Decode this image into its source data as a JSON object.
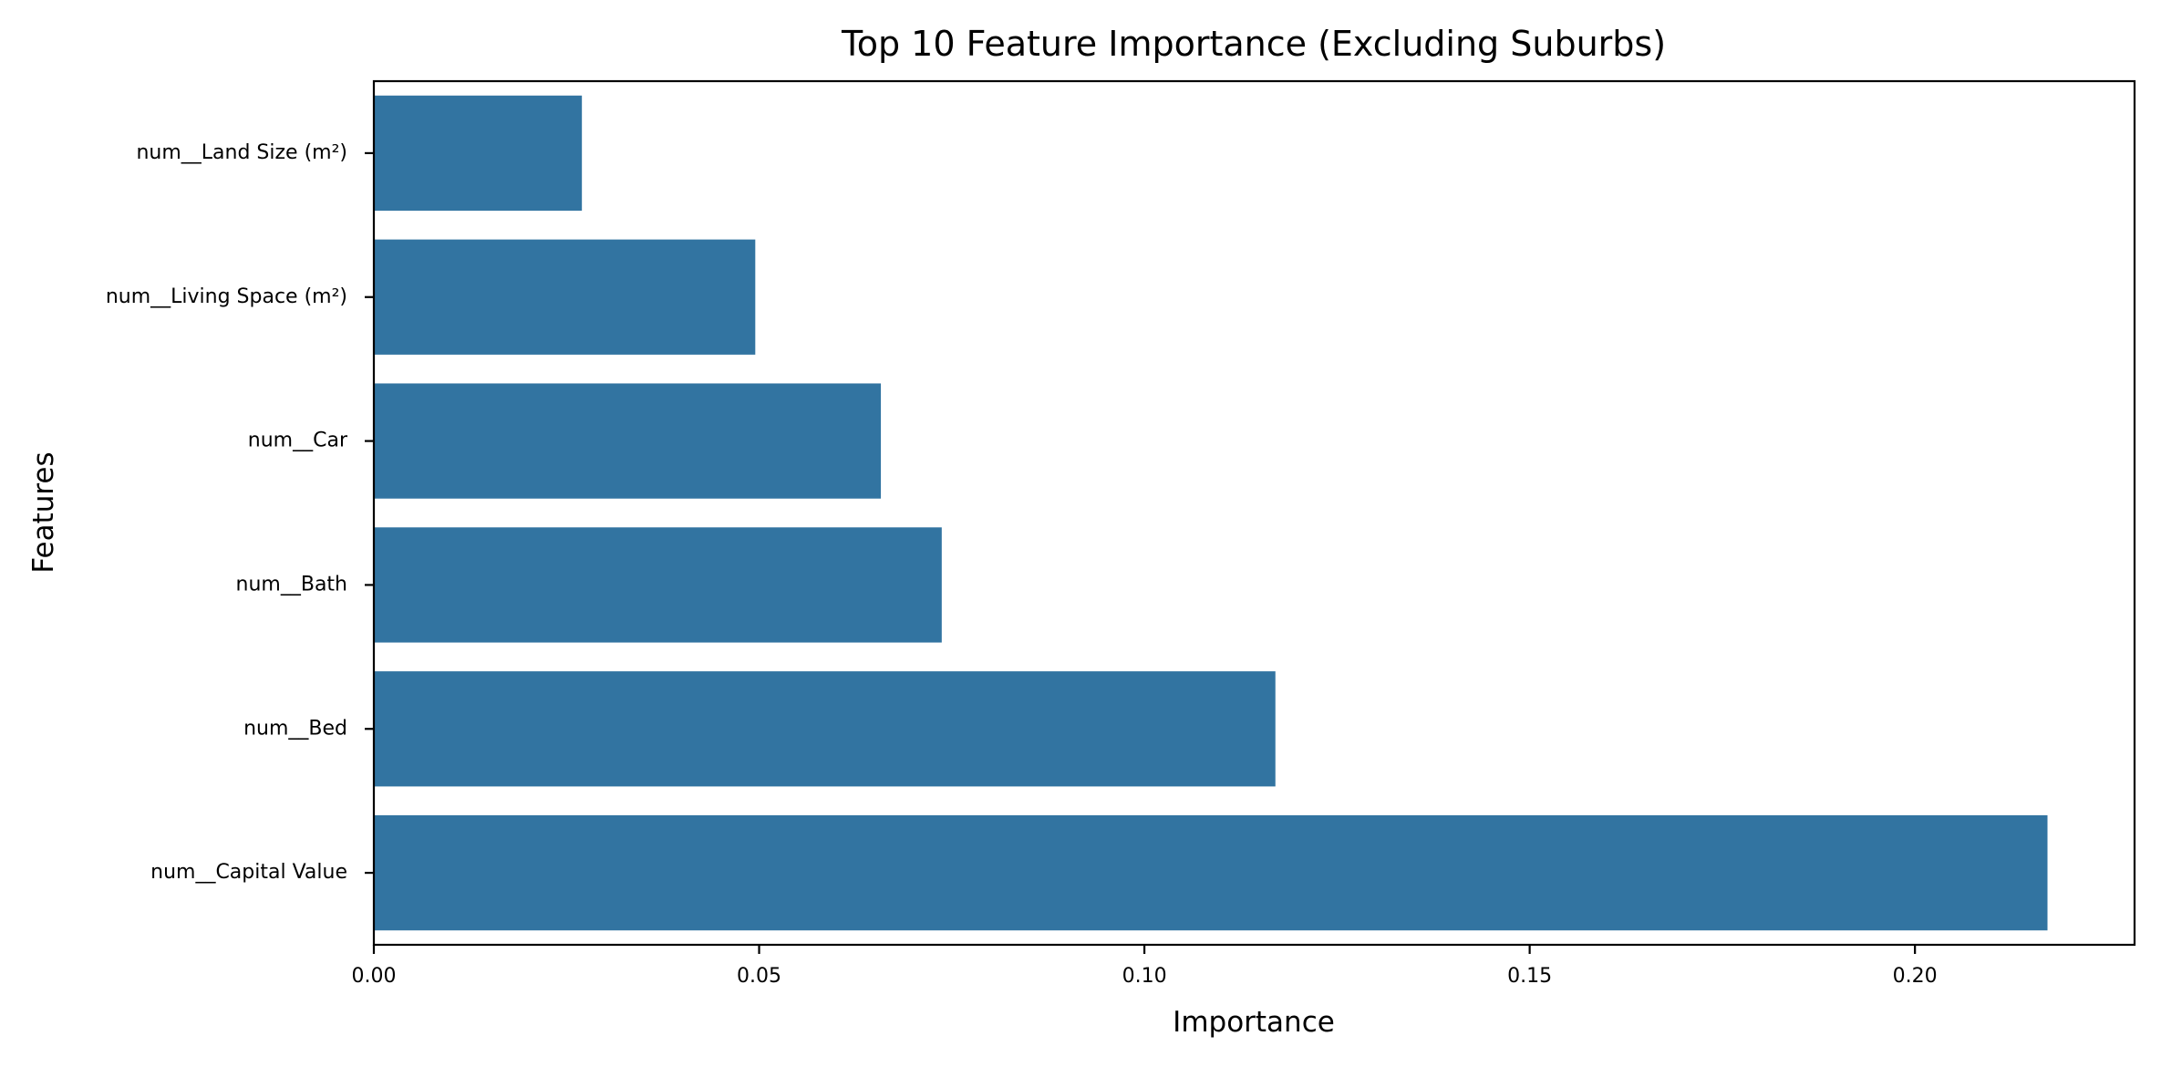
{
  "chart_data": {
    "type": "bar",
    "orientation": "horizontal",
    "title": "Top 10 Feature Importance (Excluding Suburbs)",
    "xlabel": "Importance",
    "ylabel": "Features",
    "categories": [
      "num__Land Size (m²)",
      "num__Living Space (m²)",
      "num__Car",
      "num__Bath",
      "num__Bed",
      "num__Capital Value"
    ],
    "values": [
      0.027,
      0.0495,
      0.0658,
      0.0737,
      0.117,
      0.2172
    ],
    "xlim": [
      0,
      0.2285
    ],
    "xticks": [
      "0.00",
      "0.05",
      "0.10",
      "0.15",
      "0.20"
    ],
    "xtick_values": [
      0,
      0.05,
      0.1,
      0.15,
      0.2
    ],
    "grid": false,
    "legend": "none",
    "bar_color": "#3274a1",
    "frame_color": "#000000"
  }
}
